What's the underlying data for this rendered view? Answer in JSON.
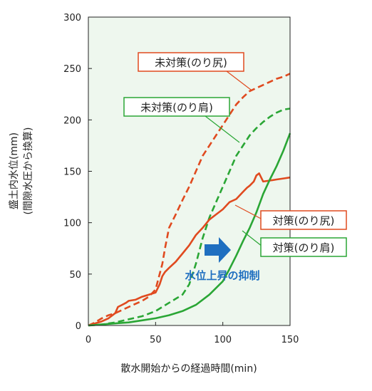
{
  "chart_data": {
    "type": "line",
    "title": "",
    "xlabel": "散水開始からの経過時間(min)",
    "ylabel": "盛土内水位(mm)",
    "ylabel_sub": "(間隙水圧から換算)",
    "xlim": [
      0,
      150
    ],
    "ylim": [
      0,
      300
    ],
    "xticks": [
      0,
      50,
      100,
      150
    ],
    "yticks": [
      0,
      50,
      100,
      150,
      200,
      250,
      300
    ],
    "grid": false,
    "background": "#eef7ee",
    "series": [
      {
        "name": "未対策(のり尻)",
        "color": "#e04a1f",
        "dash": true,
        "x": [
          0,
          5,
          10,
          15,
          20,
          25,
          30,
          35,
          40,
          45,
          50,
          52,
          55,
          57,
          60,
          65,
          70,
          75,
          80,
          85,
          90,
          95,
          100,
          105,
          110,
          115,
          120,
          125,
          130,
          135,
          140,
          145,
          150
        ],
        "y": [
          0,
          3,
          7,
          10,
          12,
          15,
          18,
          21,
          24,
          28,
          35,
          45,
          60,
          75,
          95,
          108,
          122,
          135,
          150,
          165,
          175,
          185,
          195,
          205,
          215,
          222,
          228,
          231,
          234,
          237,
          240,
          242,
          245
        ]
      },
      {
        "name": "未対策(のり肩)",
        "color": "#2aa635",
        "dash": true,
        "x": [
          0,
          10,
          20,
          30,
          40,
          50,
          55,
          60,
          65,
          70,
          75,
          80,
          85,
          90,
          95,
          100,
          105,
          110,
          115,
          120,
          125,
          130,
          135,
          140,
          145,
          150
        ],
        "y": [
          0,
          1,
          3,
          6,
          9,
          14,
          18,
          22,
          26,
          30,
          40,
          60,
          85,
          105,
          120,
          135,
          150,
          165,
          175,
          185,
          192,
          198,
          203,
          207,
          210,
          211
        ]
      },
      {
        "name": "対策(のり尻)",
        "color": "#e04a1f",
        "dash": false,
        "x": [
          0,
          5,
          10,
          15,
          20,
          22,
          25,
          28,
          30,
          35,
          40,
          45,
          50,
          53,
          55,
          57,
          60,
          65,
          70,
          75,
          80,
          85,
          90,
          95,
          100,
          105,
          110,
          115,
          118,
          120,
          123,
          125,
          127,
          130,
          135,
          140,
          145,
          150
        ],
        "y": [
          0,
          2,
          4,
          7,
          12,
          18,
          20,
          22,
          24,
          25,
          28,
          30,
          32,
          40,
          48,
          52,
          56,
          62,
          70,
          78,
          88,
          95,
          103,
          108,
          113,
          120,
          123,
          130,
          134,
          136,
          140,
          146,
          148,
          140,
          141,
          142,
          143,
          144
        ]
      },
      {
        "name": "対策(のり肩)",
        "color": "#2aa635",
        "dash": false,
        "x": [
          0,
          10,
          20,
          30,
          40,
          50,
          60,
          70,
          80,
          90,
          100,
          105,
          110,
          115,
          120,
          125,
          130,
          135,
          140,
          145,
          150
        ],
        "y": [
          0,
          1,
          2,
          3,
          5,
          7,
          10,
          14,
          20,
          30,
          43,
          55,
          68,
          82,
          95,
          110,
          128,
          142,
          155,
          170,
          187
        ]
      }
    ],
    "annotations": {
      "mitaisaku_nori_jiri": "未対策(のり尻)",
      "mitaisaku_nori_kata": "未対策(のり肩)",
      "taisaku_nori_jiri": "対策(のり尻)",
      "taisaku_nori_kata": "対策(のり肩)",
      "suppression_note": "水位上昇の抑制",
      "arrow_color": "#1f6fc0",
      "note_color": "#1f6fc0"
    }
  }
}
